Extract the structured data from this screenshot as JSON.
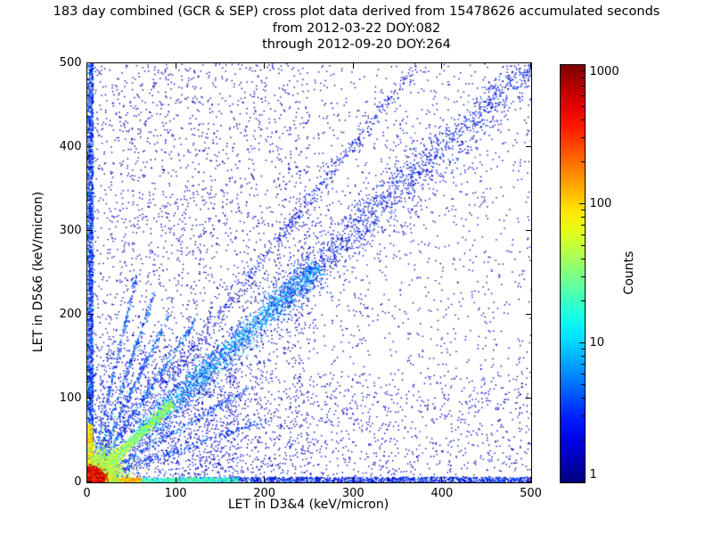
{
  "figure": {
    "title_line1": "183 day combined (GCR & SEP) cross plot data derived from 15478626 accumulated seconds",
    "title_line2": "from 2012-03-22 DOY:082",
    "title_line3": "through 2012-09-20 DOY:264",
    "accumulated_seconds": "15478626",
    "date_from": "2012-03-22",
    "doy_from": "082",
    "date_through": "2012-09-20",
    "doy_through": "264"
  },
  "chart_data": {
    "type": "heatmap",
    "title": "183 day combined (GCR & SEP) cross plot data derived from 15478626 accumulated seconds from 2012-03-22 DOY:082 through 2012-09-20 DOY:264",
    "xlabel": "LET in D3&4 (keV/micron)",
    "ylabel": "LET in D5&6 (keV/micron)",
    "xlim": [
      0,
      500
    ],
    "ylim": [
      0,
      500
    ],
    "xticks": [
      0,
      100,
      200,
      300,
      400,
      500
    ],
    "yticks": [
      0,
      100,
      200,
      300,
      400,
      500
    ],
    "grid": false,
    "colorbar": {
      "label": "Counts",
      "scale": "log",
      "range": [
        1,
        1000
      ],
      "ticks": [
        1,
        10,
        100,
        1000
      ],
      "colormap": "jet",
      "position": "right"
    },
    "description": "2D density cross plot of LET measured in detectors D5&6 vs D3&4. Very hot (red/orange, ~1000 counts) core at the origin, warm bands hugging both axes near zero, a bright cyan-green correlation streak along y=x near the origin fading to a broad blue diagonal band out to (500,500), several fainter rays fanning out from the origin at other slopes, and sparse dark-blue single counts scattered over the whole plane (denser in the left/lower regions).",
    "features": [
      {
        "name": "scatter-all",
        "type": "uniform",
        "x": [
          0,
          500
        ],
        "y": [
          0,
          500
        ],
        "count": 2600,
        "level": [
          1,
          2
        ]
      },
      {
        "name": "scatter-left",
        "type": "uniform",
        "x": [
          0,
          250
        ],
        "y": [
          0,
          500
        ],
        "count": 1700,
        "level": [
          1,
          2
        ]
      },
      {
        "name": "scatter-lower",
        "type": "uniform",
        "x": [
          0,
          500
        ],
        "y": [
          0,
          130
        ],
        "count": 1000,
        "level": [
          1,
          3
        ]
      },
      {
        "name": "scatter-corner",
        "type": "uniform",
        "x": [
          0,
          170
        ],
        "y": [
          0,
          170
        ],
        "count": 1000,
        "level": [
          1,
          4
        ]
      },
      {
        "name": "upper-diagonal",
        "type": "ray",
        "slope": 1.35,
        "x": [
          80,
          370
        ],
        "width": 6,
        "count": 500,
        "level": [
          1,
          4
        ]
      },
      {
        "name": "ray-1",
        "type": "ray",
        "slope": 1.6,
        "x": [
          15,
          120
        ],
        "width": 2.5,
        "count": 260,
        "level": [
          2,
          9
        ]
      },
      {
        "name": "ray-2",
        "type": "ray",
        "slope": 2.2,
        "x": [
          10,
          95
        ],
        "width": 2.5,
        "count": 240,
        "level": [
          2,
          9
        ]
      },
      {
        "name": "ray-3",
        "type": "ray",
        "slope": 3.0,
        "x": [
          8,
          75
        ],
        "width": 2,
        "count": 220,
        "level": [
          2,
          8
        ]
      },
      {
        "name": "ray-4",
        "type": "ray",
        "slope": 4.5,
        "x": [
          6,
          55
        ],
        "width": 2,
        "count": 200,
        "level": [
          2,
          8
        ]
      },
      {
        "name": "ray-5",
        "type": "ray",
        "slope": 0.62,
        "x": [
          15,
          180
        ],
        "width": 2.5,
        "count": 240,
        "level": [
          2,
          8
        ]
      },
      {
        "name": "ray-6",
        "type": "ray",
        "slope": 0.38,
        "x": [
          15,
          200
        ],
        "width": 2.5,
        "count": 220,
        "level": [
          2,
          6
        ]
      },
      {
        "name": "diagonal-spread",
        "type": "diagonal",
        "r": [
          30,
          420
        ],
        "width": 28,
        "count": 900,
        "level": [
          1,
          3
        ]
      },
      {
        "name": "diagonal-far",
        "type": "diagonal",
        "r": [
          200,
          500
        ],
        "width": 11,
        "count": 1300,
        "level": [
          1,
          5
        ]
      },
      {
        "name": "diagonal-mid",
        "type": "diagonal",
        "r": [
          60,
          260
        ],
        "width": 7,
        "count": 1600,
        "level": [
          3,
          12
        ]
      },
      {
        "name": "left-band",
        "type": "vband",
        "x": [
          0,
          6
        ],
        "y": [
          30,
          500
        ],
        "count": 1800,
        "level": [
          1,
          8
        ]
      },
      {
        "name": "bottom-band",
        "type": "hband",
        "x": [
          100,
          500
        ],
        "y": [
          0,
          7
        ],
        "count": 1400,
        "level": [
          1,
          6
        ]
      },
      {
        "name": "bottom-band-warm",
        "type": "hband",
        "x": [
          40,
          170
        ],
        "y": [
          0,
          6
        ],
        "count": 800,
        "level": [
          8,
          40
        ]
      },
      {
        "name": "diagonal-hot",
        "type": "diagonal",
        "r": [
          0,
          95
        ],
        "width": 3,
        "count": 1300,
        "level": [
          15,
          80
        ]
      },
      {
        "name": "left-band-hot",
        "type": "vband",
        "x": [
          0,
          5
        ],
        "y": [
          0,
          70
        ],
        "count": 800,
        "level": [
          40,
          200
        ]
      },
      {
        "name": "bottom-band-hot",
        "type": "hband",
        "x": [
          0,
          60
        ],
        "y": [
          0,
          6
        ],
        "count": 900,
        "level": [
          60,
          300
        ]
      },
      {
        "name": "origin-halo",
        "type": "gaussian",
        "cx": 10,
        "cy": 10,
        "sx": 14,
        "sy": 14,
        "count": 2600,
        "level": [
          20,
          120
        ]
      },
      {
        "name": "origin-core",
        "type": "gaussian",
        "cx": 5,
        "cy": 5,
        "sx": 5.5,
        "sy": 5.5,
        "count": 4200,
        "level": [
          200,
          1000
        ]
      }
    ]
  }
}
